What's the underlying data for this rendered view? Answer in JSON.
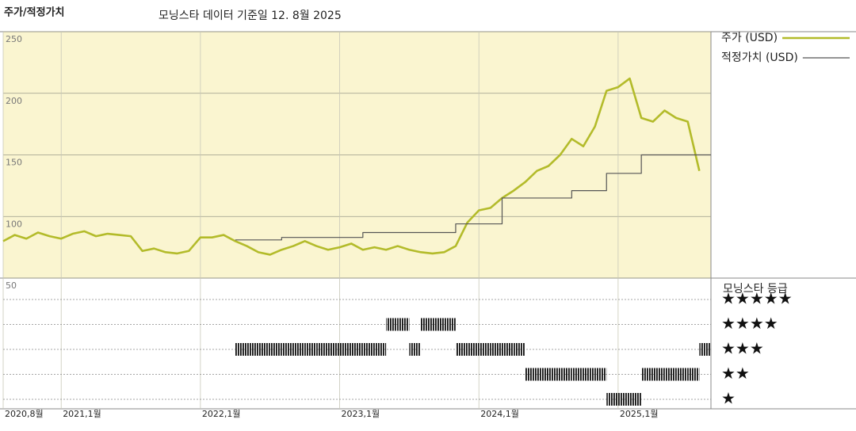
{
  "chart_data": {
    "type": "line",
    "title": "주가/적정가치",
    "subtitle": "모닝스타 데이터 기준일 12. 8월 2025",
    "x": [
      "2020-08",
      "2020-09",
      "2020-10",
      "2020-11",
      "2020-12",
      "2021-01",
      "2021-02",
      "2021-03",
      "2021-04",
      "2021-05",
      "2021-06",
      "2021-07",
      "2021-08",
      "2021-09",
      "2021-10",
      "2021-11",
      "2021-12",
      "2022-01",
      "2022-02",
      "2022-03",
      "2022-04",
      "2022-05",
      "2022-06",
      "2022-07",
      "2022-08",
      "2022-09",
      "2022-10",
      "2022-11",
      "2022-12",
      "2023-01",
      "2023-02",
      "2023-03",
      "2023-04",
      "2023-05",
      "2023-06",
      "2023-07",
      "2023-08",
      "2023-09",
      "2023-10",
      "2023-11",
      "2023-12",
      "2024-01",
      "2024-02",
      "2024-03",
      "2024-04",
      "2024-05",
      "2024-06",
      "2024-07",
      "2024-08",
      "2024-09",
      "2024-10",
      "2024-11",
      "2024-12",
      "2025-01",
      "2025-02",
      "2025-03",
      "2025-04",
      "2025-05",
      "2025-06",
      "2025-07",
      "2025-08"
    ],
    "series": [
      {
        "name": "주가 (USD)",
        "color": "#b3bb2a",
        "values": [
          80,
          85,
          82,
          87,
          84,
          82,
          86,
          88,
          84,
          86,
          85,
          84,
          72,
          74,
          71,
          70,
          72,
          83,
          83,
          85,
          80,
          76,
          71,
          69,
          73,
          76,
          80,
          76,
          73,
          75,
          78,
          73,
          75,
          73,
          76,
          73,
          71,
          70,
          71,
          76,
          95,
          105,
          107,
          115,
          121,
          128,
          137,
          141,
          150,
          163,
          157,
          173,
          202,
          205,
          212,
          180,
          177,
          186,
          180,
          177,
          137
        ]
      },
      {
        "name": "적정가치 (USD)",
        "color": "#555555",
        "step": true,
        "values": [
          null,
          null,
          null,
          null,
          null,
          null,
          null,
          null,
          null,
          null,
          null,
          null,
          null,
          null,
          null,
          null,
          null,
          null,
          null,
          null,
          81,
          81,
          81,
          81,
          83,
          83,
          83,
          83,
          83,
          83,
          83,
          87,
          87,
          87,
          87,
          87,
          87,
          87,
          87,
          94,
          94,
          94,
          94,
          115,
          115,
          115,
          115,
          115,
          115,
          121,
          121,
          121,
          135,
          135,
          135,
          150,
          150,
          150,
          150,
          150,
          150
        ]
      }
    ],
    "xlim": [
      "2020-08",
      "2025-09"
    ],
    "xticks": [
      {
        "value": "2020-08",
        "label": "2020,8월"
      },
      {
        "value": "2021-01",
        "label": "2021,1월"
      },
      {
        "value": "2022-01",
        "label": "2022,1월"
      },
      {
        "value": "2023-01",
        "label": "2023,1월"
      },
      {
        "value": "2024-01",
        "label": "2024,1월"
      },
      {
        "value": "2025-01",
        "label": "2025,1월"
      }
    ],
    "ylim": [
      50,
      250
    ],
    "yticks": [
      50,
      100,
      150,
      200,
      250
    ],
    "grid": true,
    "rating": {
      "title": "모닝스타 등급",
      "color": "#111111",
      "ticks": [
        {
          "value": 5,
          "label": "★★★★★"
        },
        {
          "value": 4,
          "label": "★★★★"
        },
        {
          "value": 3,
          "label": "★★★"
        },
        {
          "value": 2,
          "label": "★★"
        },
        {
          "value": 1,
          "label": "★"
        }
      ],
      "values": [
        null,
        null,
        null,
        null,
        null,
        null,
        null,
        null,
        null,
        null,
        null,
        null,
        null,
        null,
        null,
        null,
        null,
        null,
        null,
        null,
        3,
        3,
        3,
        3,
        3,
        3,
        3,
        3,
        3,
        3,
        3,
        3,
        3,
        4,
        4,
        3,
        4,
        4,
        4,
        3,
        3,
        3,
        3,
        3,
        3,
        2,
        2,
        2,
        2,
        2,
        2,
        2,
        1,
        1,
        1,
        2,
        2,
        2,
        2,
        2,
        3
      ]
    }
  }
}
